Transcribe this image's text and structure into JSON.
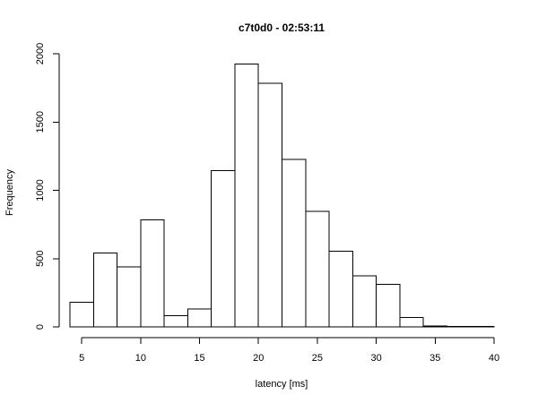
{
  "chart_data": {
    "type": "bar",
    "title": "c7t0d0 - 02:53:11",
    "xlabel": "latency [ms]",
    "ylabel": "Frequency",
    "bin_width": 2,
    "bins": [
      {
        "x0": 4,
        "x1": 6,
        "count": 180
      },
      {
        "x0": 6,
        "x1": 8,
        "count": 540
      },
      {
        "x0": 8,
        "x1": 10,
        "count": 440
      },
      {
        "x0": 10,
        "x1": 12,
        "count": 785
      },
      {
        "x0": 12,
        "x1": 14,
        "count": 82
      },
      {
        "x0": 14,
        "x1": 16,
        "count": 130
      },
      {
        "x0": 16,
        "x1": 18,
        "count": 1145
      },
      {
        "x0": 18,
        "x1": 20,
        "count": 1925
      },
      {
        "x0": 20,
        "x1": 22,
        "count": 1785
      },
      {
        "x0": 22,
        "x1": 24,
        "count": 1225
      },
      {
        "x0": 24,
        "x1": 26,
        "count": 845
      },
      {
        "x0": 26,
        "x1": 28,
        "count": 555
      },
      {
        "x0": 28,
        "x1": 30,
        "count": 375
      },
      {
        "x0": 30,
        "x1": 32,
        "count": 310
      },
      {
        "x0": 32,
        "x1": 34,
        "count": 68
      },
      {
        "x0": 34,
        "x1": 36,
        "count": 8
      },
      {
        "x0": 36,
        "x1": 38,
        "count": 3
      },
      {
        "x0": 38,
        "x1": 40,
        "count": 2
      }
    ],
    "xlim": [
      4,
      40
    ],
    "ylim": [
      0,
      2000
    ],
    "x_ticks": [
      5,
      10,
      15,
      20,
      25,
      30,
      35,
      40
    ],
    "y_ticks": [
      0,
      500,
      1000,
      1500,
      2000
    ],
    "grid": false,
    "legend": "none",
    "bar_fill": "#ffffff",
    "bar_stroke": "#000000"
  }
}
